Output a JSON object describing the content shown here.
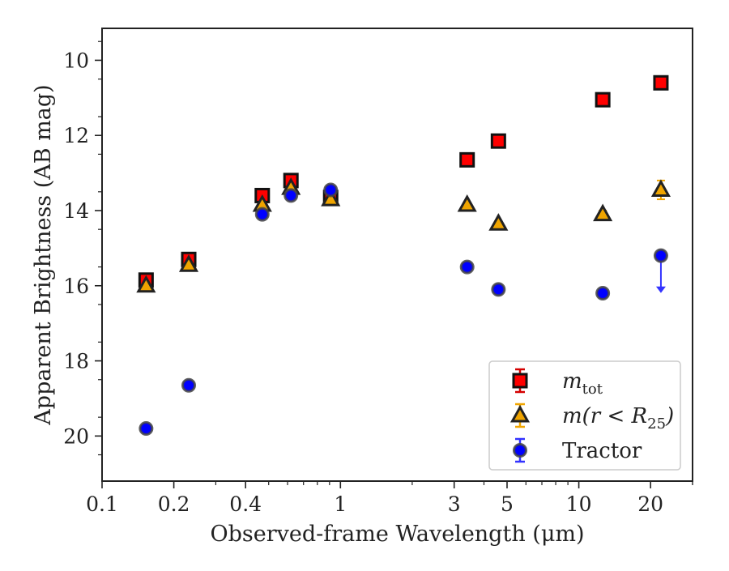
{
  "chart_data": {
    "type": "scatter",
    "title": "",
    "xlabel": "Observed-frame Wavelength (μm)",
    "ylabel": "Apparent Brightness (AB mag)",
    "x_scale": "log",
    "xlim": [
      0.1,
      30
    ],
    "ylim": [
      21.2,
      9.15
    ],
    "y_inverted": true,
    "grid": false,
    "legend_position": "bottom-right",
    "x_ticks": [
      {
        "value": 0.1,
        "label": "0.1"
      },
      {
        "value": 0.2,
        "label": "0.2"
      },
      {
        "value": 0.4,
        "label": "0.4"
      },
      {
        "value": 1,
        "label": "1"
      },
      {
        "value": 3,
        "label": "3"
      },
      {
        "value": 5,
        "label": "5"
      },
      {
        "value": 10,
        "label": "10"
      },
      {
        "value": 20,
        "label": "20"
      }
    ],
    "y_ticks": [
      {
        "value": 10,
        "label": "10"
      },
      {
        "value": 12,
        "label": "12"
      },
      {
        "value": 14,
        "label": "14"
      },
      {
        "value": 16,
        "label": "16"
      },
      {
        "value": 18,
        "label": "18"
      },
      {
        "value": 20,
        "label": "20"
      }
    ],
    "series": [
      {
        "name": "m_tot",
        "legend_label_main": "m",
        "legend_label_sub": "tot",
        "marker": "square",
        "color": "#ff0000",
        "errcolor": "#d40000",
        "points": [
          {
            "x": 0.153,
            "y": 15.85,
            "err": 0.1
          },
          {
            "x": 0.231,
            "y": 15.3,
            "err": 0.1
          },
          {
            "x": 0.47,
            "y": 13.6,
            "err": 0.08
          },
          {
            "x": 0.62,
            "y": 13.2,
            "err": 0.1
          },
          {
            "x": 0.91,
            "y": 13.65,
            "err": 0.08
          },
          {
            "x": 3.4,
            "y": 12.65,
            "err": 0.05
          },
          {
            "x": 4.6,
            "y": 12.15,
            "err": 0.05
          },
          {
            "x": 12.6,
            "y": 11.05,
            "err": 0.05
          },
          {
            "x": 22.1,
            "y": 10.6,
            "err": 0.05
          }
        ]
      },
      {
        "name": "m(r<R25)",
        "legend_label_main": "m(r < R",
        "legend_label_sub": "25",
        "legend_label_tail": ")",
        "marker": "triangle",
        "color": "#f0a500",
        "errcolor": "#f0a500",
        "points": [
          {
            "x": 0.153,
            "y": 16.0,
            "err": 0.05
          },
          {
            "x": 0.231,
            "y": 15.45,
            "err": 0.05
          },
          {
            "x": 0.47,
            "y": 13.85,
            "err": 0.05
          },
          {
            "x": 0.62,
            "y": 13.4,
            "err": 0.05
          },
          {
            "x": 0.91,
            "y": 13.7,
            "err": 0.05
          },
          {
            "x": 3.4,
            "y": 13.85,
            "err": 0.05
          },
          {
            "x": 4.6,
            "y": 14.35,
            "err": 0.05
          },
          {
            "x": 12.6,
            "y": 14.1,
            "err": 0.1
          },
          {
            "x": 22.1,
            "y": 13.45,
            "err": 0.25
          }
        ]
      },
      {
        "name": "Tractor",
        "legend_label_main": "Tractor",
        "marker": "circle",
        "color": "#0000ff",
        "errcolor": "#3333ff",
        "points": [
          {
            "x": 0.153,
            "y": 19.8,
            "err": 0.05
          },
          {
            "x": 0.231,
            "y": 18.65,
            "err": 0.05
          },
          {
            "x": 0.47,
            "y": 14.1,
            "err": 0.05
          },
          {
            "x": 0.62,
            "y": 13.6,
            "err": 0.05
          },
          {
            "x": 0.91,
            "y": 13.45,
            "err": 0.05
          },
          {
            "x": 3.4,
            "y": 15.5,
            "err": 0.05
          },
          {
            "x": 4.6,
            "y": 16.1,
            "err": 0.05
          },
          {
            "x": 12.6,
            "y": 16.2,
            "err": 0.05
          },
          {
            "x": 22.1,
            "y": 15.2,
            "err": 0.05,
            "upper_limit": true
          }
        ]
      }
    ]
  }
}
